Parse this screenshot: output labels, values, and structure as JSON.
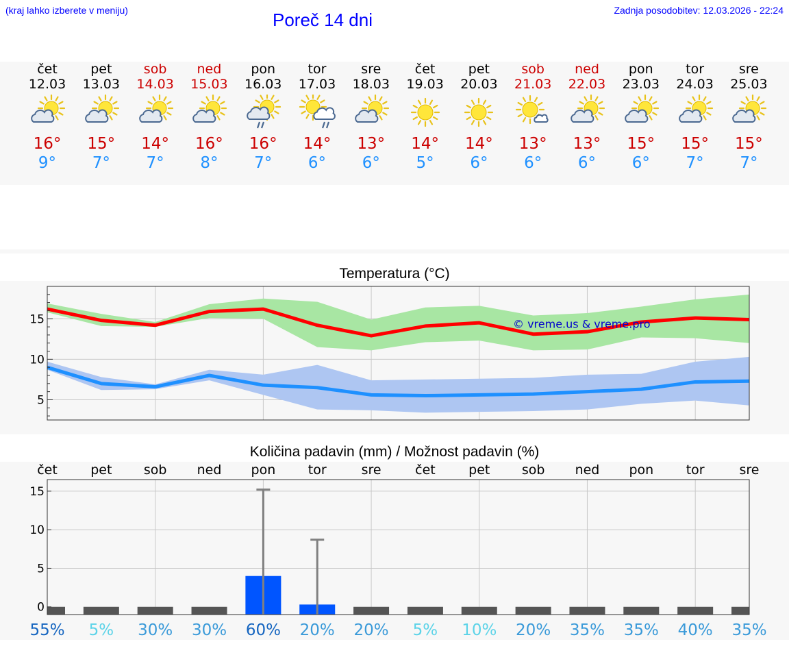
{
  "header": {
    "note": "(kraj lahko izberete v meniju)",
    "title": "Poreč 14 dni",
    "updated": "Zadnja posodobitev: 12.03.2026 - 22:24"
  },
  "days": [
    {
      "name": "čet",
      "date": "12.03",
      "icon": "partly-cloudy-icon",
      "max": "16°",
      "min": "9°",
      "weekend": false
    },
    {
      "name": "pet",
      "date": "13.03",
      "icon": "partly-cloudy-icon",
      "max": "15°",
      "min": "7°",
      "weekend": false
    },
    {
      "name": "sob",
      "date": "14.03",
      "icon": "partly-cloudy-icon",
      "max": "14°",
      "min": "7°",
      "weekend": true
    },
    {
      "name": "ned",
      "date": "15.03",
      "icon": "partly-cloudy-icon",
      "max": "16°",
      "min": "8°",
      "weekend": true
    },
    {
      "name": "pon",
      "date": "16.03",
      "icon": "partly-cloudy-rain-icon",
      "max": "16°",
      "min": "7°",
      "weekend": false
    },
    {
      "name": "tor",
      "date": "17.03",
      "icon": "sun-cloud-rain-icon",
      "max": "14°",
      "min": "6°",
      "weekend": false
    },
    {
      "name": "sre",
      "date": "18.03",
      "icon": "partly-cloudy-icon",
      "max": "13°",
      "min": "6°",
      "weekend": false
    },
    {
      "name": "čet",
      "date": "19.03",
      "icon": "sun-icon",
      "max": "14°",
      "min": "5°",
      "weekend": false
    },
    {
      "name": "pet",
      "date": "20.03",
      "icon": "sun-icon",
      "max": "14°",
      "min": "6°",
      "weekend": false
    },
    {
      "name": "sob",
      "date": "21.03",
      "icon": "sun-small-cloud-icon",
      "max": "13°",
      "min": "6°",
      "weekend": true
    },
    {
      "name": "ned",
      "date": "22.03",
      "icon": "partly-cloudy-icon",
      "max": "13°",
      "min": "6°",
      "weekend": true
    },
    {
      "name": "pon",
      "date": "23.03",
      "icon": "partly-cloudy-icon",
      "max": "15°",
      "min": "6°",
      "weekend": false
    },
    {
      "name": "tor",
      "date": "24.03",
      "icon": "partly-cloudy-icon",
      "max": "15°",
      "min": "7°",
      "weekend": false
    },
    {
      "name": "sre",
      "date": "25.03",
      "icon": "partly-cloudy-icon",
      "max": "15°",
      "min": "7°",
      "weekend": false
    }
  ],
  "colors": {
    "max": "#ff0000",
    "maxBand": "#a8e6a3",
    "min": "#1e90ff",
    "minBand": "#aec6f2",
    "bar": "#0055ff",
    "whisker": "#808080",
    "weekend": "#cc0000"
  },
  "chart_data": [
    {
      "type": "line",
      "title": "Temperatura (°C)",
      "watermark": "© vreme.us & vreme.pro",
      "ylim": [
        2.5,
        19
      ],
      "yticks": [
        5,
        10,
        15
      ],
      "series": [
        {
          "name": "max",
          "values": [
            16.2,
            14.8,
            14.2,
            15.9,
            16.2,
            14.2,
            12.9,
            14.1,
            14.5,
            13.1,
            13.4,
            14.6,
            15.1,
            14.9
          ]
        },
        {
          "name": "max-high",
          "values": [
            16.9,
            15.6,
            14.6,
            16.8,
            17.5,
            17.1,
            14.9,
            16.4,
            16.6,
            15.4,
            15.7,
            16.5,
            17.4,
            18.0
          ]
        },
        {
          "name": "max-low",
          "values": [
            15.8,
            14.1,
            14.0,
            15.1,
            15.0,
            11.5,
            11.1,
            12.1,
            12.3,
            11.1,
            11.2,
            12.7,
            12.6,
            12.0
          ]
        },
        {
          "name": "min",
          "values": [
            9.0,
            7.0,
            6.6,
            8.0,
            6.8,
            6.5,
            5.6,
            5.5,
            5.6,
            5.7,
            6.0,
            6.3,
            7.2,
            7.3
          ]
        },
        {
          "name": "min-high",
          "values": [
            9.7,
            7.8,
            6.9,
            8.7,
            8.1,
            9.3,
            7.4,
            7.5,
            7.6,
            7.7,
            8.1,
            8.2,
            9.7,
            10.3
          ]
        },
        {
          "name": "min-low",
          "values": [
            8.7,
            6.2,
            6.3,
            7.4,
            5.6,
            3.8,
            3.7,
            3.4,
            3.5,
            3.6,
            3.8,
            4.5,
            4.9,
            4.3
          ]
        }
      ]
    },
    {
      "type": "bar",
      "title": "Količina padavin (mm) / Možnost padavin (%)",
      "categories": [
        "čet",
        "pet",
        "sob",
        "ned",
        "pon",
        "tor",
        "sre",
        "čet",
        "pet",
        "sob",
        "ned",
        "pon",
        "tor",
        "sre"
      ],
      "values": [
        0,
        0,
        0,
        0,
        4.0,
        0.3,
        0,
        0,
        0,
        0,
        0,
        0,
        0,
        0
      ],
      "whisker_max": [
        0,
        0,
        0,
        0,
        15.2,
        8.7,
        0,
        0,
        0,
        0,
        0,
        0,
        0,
        0
      ],
      "ylim": [
        -1,
        16.5
      ],
      "yticks": [
        0,
        5,
        10,
        15
      ],
      "probabilities": [
        "55%",
        "5%",
        "30%",
        "30%",
        "60%",
        "20%",
        "20%",
        "5%",
        "10%",
        "20%",
        "35%",
        "35%",
        "40%",
        "35%"
      ],
      "probability_colors": [
        "#1565c0",
        "#5bd3e8",
        "#3a9ad9",
        "#3a9ad9",
        "#1565c0",
        "#3a9ad9",
        "#3a9ad9",
        "#5bd3e8",
        "#5bd3e8",
        "#3a9ad9",
        "#3a9ad9",
        "#3a9ad9",
        "#3a9ad9",
        "#3a9ad9"
      ]
    }
  ]
}
